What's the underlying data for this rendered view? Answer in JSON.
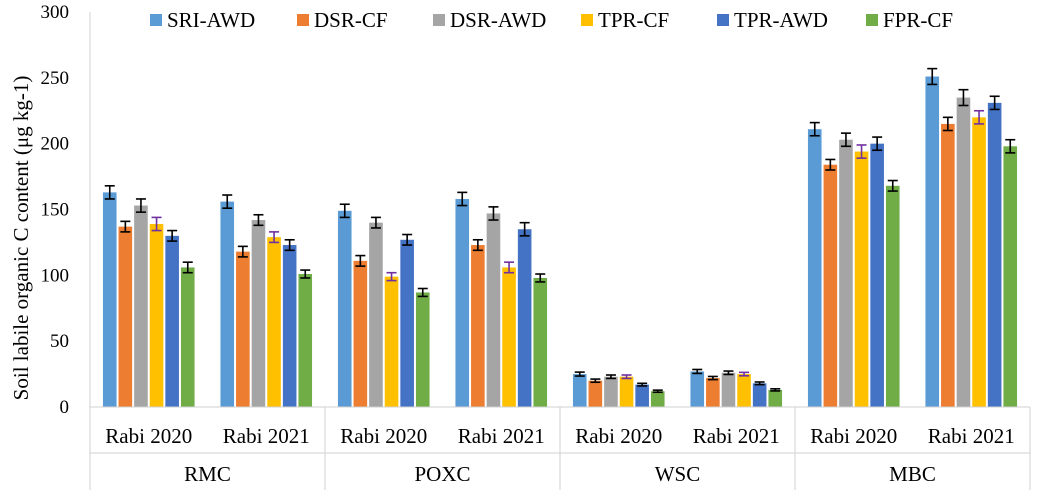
{
  "chart_data": {
    "type": "bar",
    "title": "",
    "ylabel": "Soil labile organic C content (μg kg-1)",
    "xlabel": "",
    "ylim": [
      0,
      300
    ],
    "yticks": [
      0,
      50,
      100,
      150,
      200,
      250,
      300
    ],
    "grid": false,
    "legend_position": "top",
    "groups": [
      "RMC",
      "POXC",
      "WSC",
      "MBC"
    ],
    "categories": [
      "Rabi 2020",
      "Rabi 2021",
      "Rabi 2020",
      "Rabi 2021",
      "Rabi 2020",
      "Rabi 2021",
      "Rabi 2020",
      "Rabi 2021"
    ],
    "series": [
      {
        "name": "SRI-AWD",
        "color": "#5B9BD5",
        "err_color": "#000000",
        "values": [
          163,
          156,
          149,
          158,
          25,
          27,
          211,
          251
        ],
        "errors": [
          5,
          5,
          5,
          5,
          1.5,
          1.5,
          5,
          6
        ]
      },
      {
        "name": "DSR-CF",
        "color": "#ED7D31",
        "err_color": "#000000",
        "values": [
          137,
          118,
          111,
          123,
          20,
          22,
          184,
          215
        ],
        "errors": [
          4,
          4,
          4,
          4,
          1.2,
          1.2,
          4,
          5
        ]
      },
      {
        "name": "DSR-AWD",
        "color": "#A5A5A5",
        "err_color": "#000000",
        "values": [
          153,
          142,
          140,
          147,
          23,
          26,
          203,
          235
        ],
        "errors": [
          5,
          4,
          4,
          5,
          1.3,
          1.3,
          5,
          6
        ]
      },
      {
        "name": "TPR-CF",
        "color": "#FFC000",
        "err_color": "#7030A0",
        "values": [
          139,
          129,
          99,
          106,
          23,
          25,
          194,
          220
        ],
        "errors": [
          5,
          4,
          3,
          4,
          1.3,
          1.3,
          5,
          5
        ]
      },
      {
        "name": "TPR-AWD",
        "color": "#4472C4",
        "err_color": "#000000",
        "values": [
          130,
          123,
          127,
          135,
          17,
          18,
          200,
          231
        ],
        "errors": [
          4,
          4,
          4,
          5,
          1,
          1,
          5,
          5
        ]
      },
      {
        "name": "FPR-CF",
        "color": "#70AD47",
        "err_color": "#000000",
        "values": [
          106,
          101,
          87,
          98,
          12,
          13,
          168,
          198
        ],
        "errors": [
          4,
          3,
          3,
          3,
          0.8,
          0.8,
          4,
          5
        ]
      }
    ]
  }
}
